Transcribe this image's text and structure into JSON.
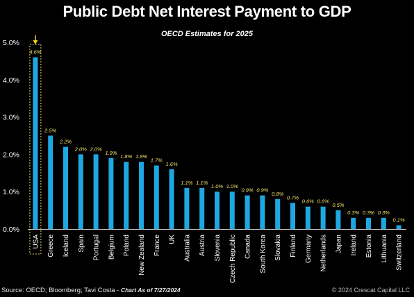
{
  "chart_data": {
    "type": "bar",
    "title": "Public Debt Net Interest Payment to GDP",
    "subtitle": "OECD Estimates for 2025",
    "categories": [
      "USA",
      "Greece",
      "Iceland",
      "Spain",
      "Portugal",
      "Belgium",
      "Poland",
      "New Zealand",
      "France",
      "UK",
      "Australia",
      "Austria",
      "Slovenia",
      "Czech Republic",
      "Canada",
      "South Korea",
      "Slovakia",
      "Finland",
      "Germany",
      "Netherlands",
      "Japan",
      "Ireland",
      "Estonia",
      "Lithuania",
      "Switzerland"
    ],
    "values": [
      4.6,
      2.5,
      2.2,
      2.0,
      2.0,
      1.9,
      1.8,
      1.8,
      1.7,
      1.6,
      1.1,
      1.1,
      1.0,
      1.0,
      0.9,
      0.9,
      0.8,
      0.7,
      0.6,
      0.6,
      0.5,
      0.3,
      0.3,
      0.3,
      0.1
    ],
    "data_labels": [
      "4.6%",
      "2.5%",
      "2.2%",
      "2.0%",
      "2.0%",
      "1.9%",
      "1.8%",
      "1.8%",
      "1.7%",
      "1.6%",
      "1.1%",
      "1.1%",
      "1.0%",
      "1.0%",
      "0.9%",
      "0.9%",
      "0.8%",
      "0.7%",
      "0.6%",
      "0.6%",
      "0.5%",
      "0.3%",
      "0.3%",
      "0.3%",
      "0.1%"
    ],
    "y_ticks": [
      "0.0%",
      "1.0%",
      "2.0%",
      "3.0%",
      "4.0%",
      "5.0%"
    ],
    "ylim": [
      0,
      5
    ],
    "highlight": "USA",
    "grid": false,
    "legend": "none"
  },
  "colors": {
    "bar": "#1ea7e1",
    "data_label": "#f2e36b",
    "arrow": "#f2d21b",
    "highlight_box": "#e8d46a",
    "axis": "#cccccc"
  },
  "footer": {
    "source": "Source: OECD; Bloomberg; Tavi Costa - ",
    "chart_date": "Chart As of 7/27/2024",
    "credit": "© 2024 Crescat Capital LLC"
  }
}
